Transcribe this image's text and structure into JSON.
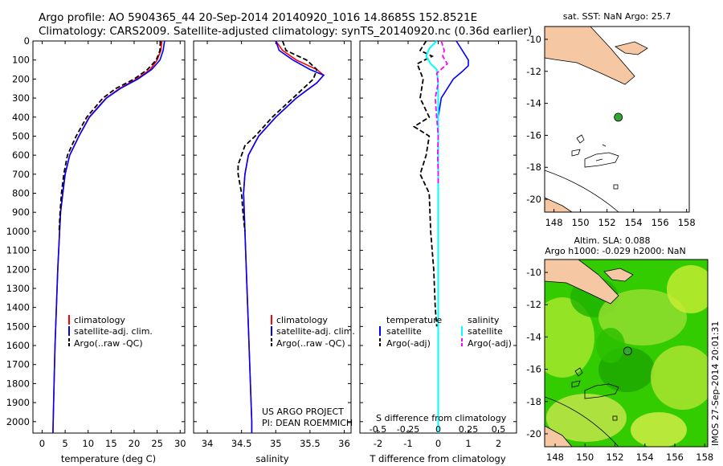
{
  "header": {
    "line1": "Argo profile: AO 5904365_44 20-Sep-2014 20140920_1016 14.8685S 152.8521E",
    "line2": "Climatology: CARS2009. Satellite-adjusted climatology: synTS_20140920.nc (0.36d earlier)"
  },
  "depth_axis": {
    "ticks": [
      0,
      100,
      200,
      300,
      400,
      500,
      600,
      700,
      800,
      900,
      1000,
      1100,
      1200,
      1300,
      1400,
      1500,
      1600,
      1700,
      1800,
      1900,
      2000
    ],
    "lim": [
      0,
      2060
    ]
  },
  "temperature_panel": {
    "xlabel": "temperature (deg C)",
    "xticks": [
      0,
      5,
      10,
      15,
      20,
      25,
      30
    ],
    "xlim": [
      -2,
      31
    ],
    "legend": [
      "climatology",
      "satellite-adj. clim.",
      "Argo(..raw -QC)"
    ]
  },
  "salinity_panel": {
    "xlabel": "salinity",
    "xticks": [
      34,
      34.5,
      35,
      35.5,
      36
    ],
    "xlim": [
      33.8,
      36.1
    ],
    "legend": [
      "climatology",
      "satellite-adj. clim.",
      "Argo(..raw -QC)"
    ],
    "credit1": "US ARGO PROJECT",
    "credit2": "PI: DEAN ROEMMICH"
  },
  "difference_panel": {
    "xlabel": "T difference from climatology",
    "xticks": [
      -2,
      -1,
      0,
      1,
      2
    ],
    "xlim": [
      -2.6,
      2.6
    ],
    "s_label": "S difference from climatology",
    "s_ticks": [
      "-0.5",
      "-0.25",
      "0",
      "0.25",
      "0.5"
    ],
    "legend_temp_title": "temperature",
    "legend_sal_title": "salinity",
    "legend_temp": [
      "satellite",
      "Argo(-adj)"
    ],
    "legend_sal": [
      "satellite",
      "Argo(-adj)"
    ]
  },
  "sst_map": {
    "title": "sat. SST: NaN Argo: 25.7",
    "xticks": [
      148,
      150,
      152,
      154,
      156,
      158
    ],
    "yticks": [
      -10,
      -12,
      -14,
      -16,
      -18,
      -20
    ],
    "lon_range": [
      147.3,
      158.2
    ],
    "lat_range": [
      -20.8,
      -9.2
    ],
    "float_position": {
      "lon": 152.85,
      "lat": -14.87
    }
  },
  "sla_map": {
    "title1": "Altim. SLA: 0.088",
    "title2": "Argo h1000: -0.029 h2000: NaN",
    "xticks": [
      148,
      150,
      152,
      154,
      156,
      158
    ],
    "yticks": [
      -10,
      -12,
      -14,
      -16,
      -18,
      -20
    ],
    "lon_range": [
      147.3,
      158.2
    ],
    "lat_range": [
      -20.8,
      -9.2
    ],
    "float_position": {
      "lon": 152.85,
      "lat": -14.87
    }
  },
  "side_stamp": "IMOS 27-Sep-2014 20:01:31",
  "colors": {
    "climatology": "#ff0000",
    "satellite": "#0000ff",
    "argo": "#000000",
    "sal_satellite": "#00ffff",
    "sal_argo": "#ff00ff",
    "land": "#f5c7a3",
    "float_marker": "#2ea82e",
    "sla_base": "#33cc00"
  },
  "chart_data": [
    {
      "type": "line",
      "title": "temperature",
      "xlabel": "temperature (deg C)",
      "ylabel": "depth",
      "xlim": [
        -2,
        31
      ],
      "ylim": [
        2060,
        0
      ],
      "series": [
        {
          "name": "climatology",
          "depth": [
            0,
            50,
            100,
            150,
            200,
            250,
            300,
            400,
            500,
            600,
            700,
            800,
            900,
            1000,
            1200,
            1400,
            1600,
            1800,
            2000,
            2060
          ],
          "values": [
            26.0,
            25.8,
            25.0,
            23.5,
            20.5,
            16.8,
            13.9,
            10.2,
            8.0,
            6.0,
            5.0,
            4.5,
            4.0,
            3.8,
            3.4,
            3.1,
            2.8,
            2.6,
            2.4,
            2.35
          ]
        },
        {
          "name": "satellite-adj. clim.",
          "depth": [
            0,
            50,
            100,
            150,
            200,
            250,
            300,
            400,
            500,
            600,
            700,
            800,
            900,
            1000,
            1200,
            1400,
            1600,
            1800,
            2000,
            2060
          ],
          "values": [
            26.6,
            26.3,
            25.6,
            23.8,
            20.8,
            17.0,
            14.0,
            10.3,
            8.0,
            6.0,
            5.0,
            4.5,
            4.0,
            3.8,
            3.4,
            3.1,
            2.8,
            2.6,
            2.4,
            2.35
          ]
        },
        {
          "name": "Argo(..raw -QC)",
          "depth": [
            0,
            50,
            100,
            150,
            200,
            250,
            300,
            400,
            500,
            600,
            700,
            800,
            900,
            1000
          ],
          "values": [
            25.7,
            25.6,
            24.8,
            22.9,
            20.0,
            16.0,
            13.2,
            9.7,
            7.4,
            5.5,
            4.7,
            4.2,
            3.9,
            3.7
          ]
        }
      ]
    },
    {
      "type": "line",
      "title": "salinity",
      "xlabel": "salinity",
      "ylabel": "depth",
      "xlim": [
        33.8,
        36.1
      ],
      "ylim": [
        2060,
        0
      ],
      "series": [
        {
          "name": "climatology",
          "depth": [
            0,
            50,
            100,
            150,
            180,
            220,
            300,
            400,
            500,
            600,
            700,
            800,
            1000,
            1200,
            1500,
            1800,
            2000,
            2060
          ],
          "values": [
            35.0,
            35.1,
            35.3,
            35.6,
            35.7,
            35.6,
            35.3,
            35.0,
            34.75,
            34.6,
            34.55,
            34.53,
            34.55,
            34.57,
            34.6,
            34.63,
            34.65,
            34.65
          ]
        },
        {
          "name": "satellite-adj. clim.",
          "depth": [
            0,
            50,
            100,
            150,
            180,
            220,
            300,
            400,
            500,
            600,
            700,
            800,
            1000,
            1200,
            1500,
            1800,
            2000,
            2060
          ],
          "values": [
            35.0,
            35.05,
            35.25,
            35.5,
            35.7,
            35.6,
            35.3,
            35.0,
            34.75,
            34.6,
            34.55,
            34.53,
            34.55,
            34.57,
            34.6,
            34.63,
            34.65,
            34.65
          ]
        },
        {
          "name": "Argo(..raw -QC)",
          "depth": [
            0,
            50,
            100,
            150,
            200,
            300,
            400,
            500,
            550,
            600,
            650,
            700,
            800,
            900,
            1000
          ],
          "values": [
            35.1,
            35.15,
            35.45,
            35.6,
            35.55,
            35.25,
            34.95,
            34.7,
            34.55,
            34.5,
            34.45,
            34.45,
            34.5,
            34.52,
            34.55
          ]
        }
      ]
    },
    {
      "type": "line",
      "title": "difference from climatology",
      "xlabel": "T difference from climatology",
      "ylabel": "depth",
      "xlim": [
        -2.6,
        2.6
      ],
      "ylim": [
        2060,
        0
      ],
      "series": [
        {
          "name": "temperature satellite",
          "depth": [
            0,
            50,
            100,
            130,
            160,
            200,
            250,
            300,
            400,
            500,
            700,
            900,
            1200,
            1600,
            2000,
            2060
          ],
          "values": [
            0.6,
            0.8,
            1.0,
            1.0,
            0.8,
            0.5,
            0.3,
            0.1,
            0.0,
            0.0,
            0.0,
            0.0,
            0.0,
            0.0,
            0.0,
            0.0
          ]
        },
        {
          "name": "temperature Argo(-adj)",
          "depth": [
            0,
            50,
            80,
            120,
            200,
            300,
            400,
            450,
            500,
            600,
            700,
            800,
            1000,
            1200,
            1400,
            1500
          ],
          "values": [
            -0.4,
            -0.6,
            -0.2,
            -0.7,
            -0.5,
            -0.6,
            -0.3,
            -0.8,
            -0.3,
            -0.4,
            -0.6,
            -0.3,
            -0.25,
            -0.15,
            -0.1,
            -0.05
          ]
        },
        {
          "name": "salinity satellite",
          "depth": [
            0,
            40,
            80,
            120,
            150,
            200,
            300,
            500,
            800,
            1200,
            1600,
            2000,
            2060
          ],
          "values": [
            -0.05,
            -0.3,
            -0.4,
            -0.25,
            -0.05,
            -0.01,
            0.0,
            0.0,
            0.0,
            0.0,
            0.0,
            0.0,
            0.0
          ]
        },
        {
          "name": "salinity Argo(-adj)",
          "depth": [
            0,
            50,
            80,
            120,
            170,
            220,
            300,
            400,
            500,
            600,
            700,
            750
          ],
          "values": [
            0.1,
            0.2,
            0.15,
            0.3,
            -0.05,
            0.0,
            -0.1,
            -0.05,
            0.0,
            -0.02,
            0.0,
            0.0
          ]
        }
      ]
    }
  ]
}
